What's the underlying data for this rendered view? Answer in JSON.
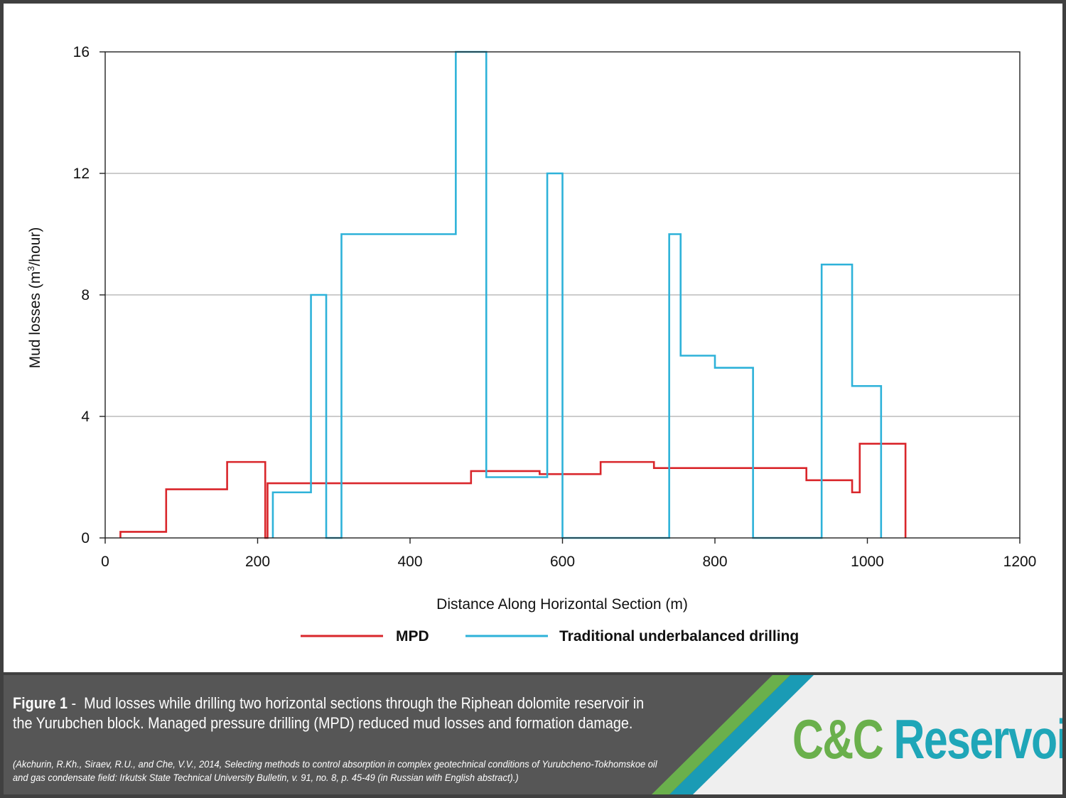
{
  "chart_data": {
    "type": "line",
    "step": true,
    "xlabel": "Distance Along Horizontal Section (m)",
    "ylabel": "Mud losses (m³/hour)",
    "xlim": [
      0,
      1200
    ],
    "ylim": [
      0,
      16
    ],
    "x_ticks": [
      0,
      200,
      400,
      600,
      800,
      1000,
      1200
    ],
    "y_ticks": [
      0,
      4,
      8,
      12,
      16
    ],
    "grid": "horizontal",
    "legend_position": "bottom",
    "series": [
      {
        "name": "MPD",
        "color": "#d9262b",
        "points": [
          [
            20,
            0
          ],
          [
            20,
            0.2
          ],
          [
            80,
            0.2
          ],
          [
            80,
            1.6
          ],
          [
            160,
            1.6
          ],
          [
            160,
            2.5
          ],
          [
            210,
            2.5
          ],
          [
            210,
            0
          ],
          [
            213,
            0
          ],
          [
            213,
            1.8
          ],
          [
            480,
            1.8
          ],
          [
            480,
            2.2
          ],
          [
            570,
            2.2
          ],
          [
            570,
            2.1
          ],
          [
            650,
            2.1
          ],
          [
            650,
            2.5
          ],
          [
            720,
            2.5
          ],
          [
            720,
            2.3
          ],
          [
            920,
            2.3
          ],
          [
            920,
            1.9
          ],
          [
            980,
            1.9
          ],
          [
            980,
            1.5
          ],
          [
            990,
            1.5
          ],
          [
            990,
            3.1
          ],
          [
            1050,
            3.1
          ],
          [
            1050,
            0
          ]
        ]
      },
      {
        "name": "Traditional underbalanced drilling",
        "color": "#2eb2d9",
        "points": [
          [
            220,
            0
          ],
          [
            220,
            1.5
          ],
          [
            270,
            1.5
          ],
          [
            270,
            8
          ],
          [
            290,
            8
          ],
          [
            290,
            0
          ],
          [
            310,
            0
          ],
          [
            310,
            10
          ],
          [
            460,
            10
          ],
          [
            460,
            16
          ],
          [
            500,
            16
          ],
          [
            500,
            2
          ],
          [
            580,
            2
          ],
          [
            580,
            12
          ],
          [
            600,
            12
          ],
          [
            600,
            0
          ],
          [
            740,
            0
          ],
          [
            740,
            10
          ],
          [
            755,
            10
          ],
          [
            755,
            6
          ],
          [
            800,
            6
          ],
          [
            800,
            5.6
          ],
          [
            850,
            5.6
          ],
          [
            850,
            0
          ],
          [
            940,
            0
          ],
          [
            940,
            9
          ],
          [
            980,
            9
          ],
          [
            980,
            5
          ],
          [
            1018,
            5
          ],
          [
            1018,
            0
          ]
        ]
      }
    ]
  },
  "legend": {
    "mpd_label": "MPD",
    "tud_label": "Traditional underbalanced drilling"
  },
  "caption": {
    "label": "Figure 1",
    "separator": " -  ",
    "text": "Mud losses while drilling two horizontal sections through the Riphean dolomite reservoir in the Yurubchen block. Managed pressure drilling (MPD) reduced mud losses and formation damage.",
    "citation": "(Akchurin, R.Kh., Siraev, R.U., and Che, V.V., 2014, Selecting methods to control absorption in complex geotechnical conditions of Yurubcheno-Tokhomskoe oil and gas condensate field: Irkutsk State Technical University Bulletin, v. 91, no. 8, p. 45-49 (in Russian with English abstract).)"
  },
  "brand": {
    "logo_text": "C&C Reservoirs",
    "colors": {
      "green": "#6ab04c",
      "teal": "#1fa6b8",
      "stripe_green": "#6ab04c",
      "stripe_teal": "#1a9bb5"
    }
  }
}
